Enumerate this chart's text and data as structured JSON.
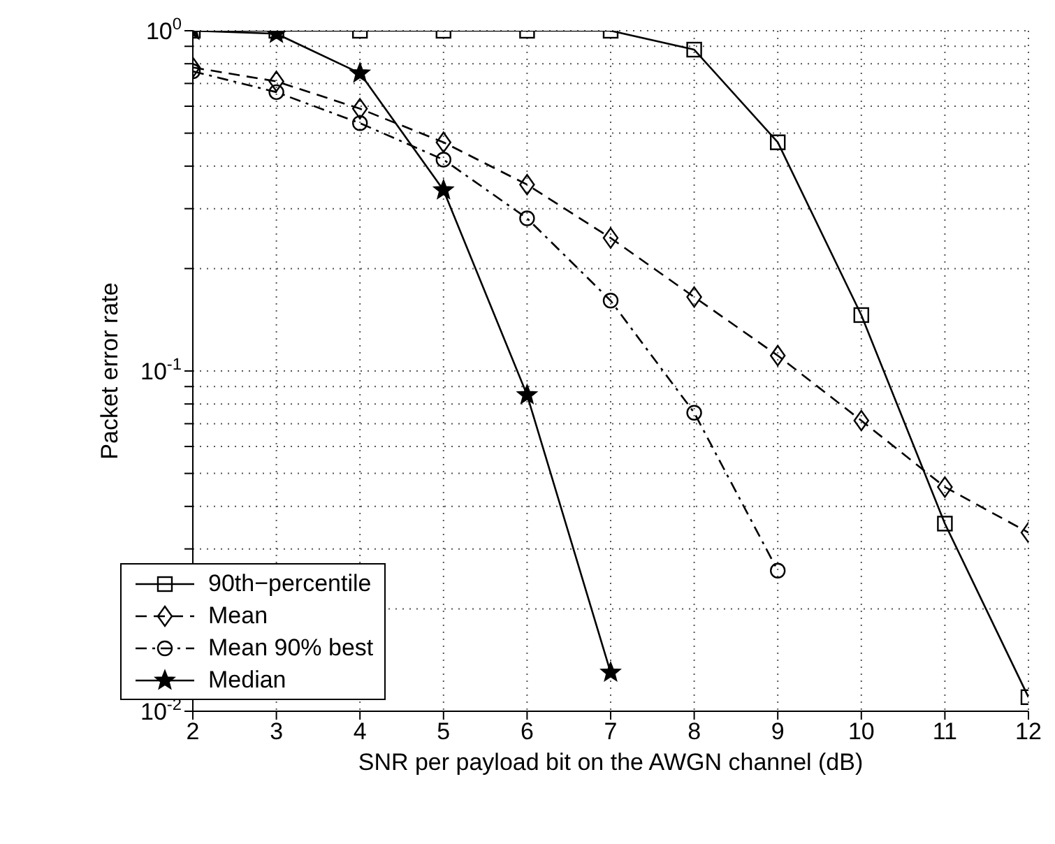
{
  "chart_data": {
    "type": "line",
    "xlabel": "SNR per payload bit on the AWGN channel (dB)",
    "ylabel": "Packet error rate",
    "x": [
      2,
      3,
      4,
      5,
      6,
      7,
      8,
      9,
      10,
      11,
      12
    ],
    "series": [
      {
        "name": "90th−percentile",
        "color": "#000000",
        "marker": "square",
        "line_style": "solid",
        "values": [
          1,
          1,
          1,
          1,
          1,
          1,
          0.88,
          0.47,
          0.146,
          0.0356,
          0.011
        ]
      },
      {
        "name": "Mean",
        "color": "#000000",
        "marker": "diamond",
        "line_style": "dashed",
        "values": [
          0.78,
          0.71,
          0.59,
          0.47,
          0.353,
          0.246,
          0.165,
          0.111,
          0.0715,
          0.0456,
          0.0335
        ]
      },
      {
        "name": "Mean 90% best",
        "color": "#000000",
        "marker": "circle",
        "line_style": "dashdot",
        "values": [
          0.76,
          0.66,
          0.535,
          0.418,
          0.281,
          0.161,
          0.0754,
          0.0259,
          null,
          null,
          null
        ]
      },
      {
        "name": "Median",
        "color": "#000000",
        "marker": "star",
        "line_style": "solid",
        "values": [
          1,
          0.98,
          0.75,
          0.34,
          0.085,
          0.013,
          null,
          null,
          null,
          null,
          null
        ]
      }
    ],
    "xlim": [
      2,
      12
    ],
    "xticks": [
      2,
      3,
      4,
      5,
      6,
      7,
      8,
      9,
      10,
      11,
      12
    ],
    "ylim": [
      0.01,
      1
    ],
    "log": "y",
    "yticks": [
      {
        "value": 0.01,
        "label": "10$^{-2}$"
      },
      {
        "value": 0.02,
        "label": null
      },
      {
        "value": 0.03,
        "label": null
      },
      {
        "value": 0.04,
        "label": null
      },
      {
        "value": 0.05,
        "label": null
      },
      {
        "value": 0.06,
        "label": null
      },
      {
        "value": 0.07,
        "label": null
      },
      {
        "value": 0.08,
        "label": null
      },
      {
        "value": 0.09,
        "label": null
      },
      {
        "value": 0.1,
        "label": "10$^{-1}$"
      },
      {
        "value": 0.2,
        "label": null
      },
      {
        "value": 0.3,
        "label": null
      },
      {
        "value": 0.4,
        "label": null
      },
      {
        "value": 0.5,
        "label": null
      },
      {
        "value": 0.6,
        "label": null
      },
      {
        "value": 0.7,
        "label": null
      },
      {
        "value": 0.8,
        "label": null
      },
      {
        "value": 0.9,
        "label": null
      },
      {
        "value": 1,
        "label": "10$^{0}$"
      }
    ],
    "grid": true,
    "legend": "bottom left"
  }
}
